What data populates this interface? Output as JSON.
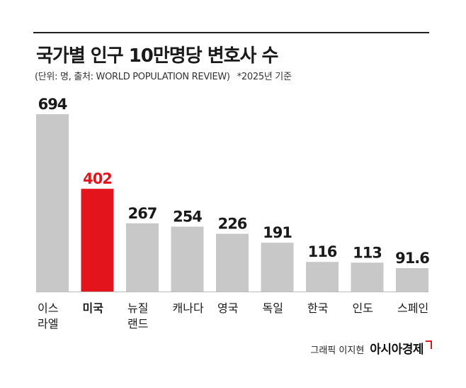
{
  "header": {
    "title": "국가별 인구 10만명당 변호사 수",
    "unit_source": "(단위: 명, 출처: WORLD POPULATION REVIEW)",
    "note": "*2025년 기준"
  },
  "credit": {
    "byline": "그래픽 이지현",
    "brand": "아시아경제"
  },
  "colors": {
    "bar_default": "#c8c8c8",
    "bar_highlight": "#e4141d",
    "value_default": "#1a1a1a",
    "value_highlight": "#e4141d"
  },
  "chart_data": {
    "type": "bar",
    "title": "국가별 인구 10만명당 변호사 수",
    "categories": [
      [
        "이스",
        "라엘"
      ],
      [
        "미국"
      ],
      [
        "뉴질",
        "랜드"
      ],
      [
        "캐나다"
      ],
      [
        "영국"
      ],
      [
        "독일"
      ],
      [
        "한국"
      ],
      [
        "인도"
      ],
      [
        "스페인"
      ]
    ],
    "values": [
      694,
      402,
      267,
      254,
      226,
      191,
      116,
      113,
      91.6
    ],
    "value_labels": [
      "694",
      "402",
      "267",
      "254",
      "226",
      "191",
      "116",
      "113",
      "91.6"
    ],
    "highlight_index": 1,
    "ylim": [
      0,
      694
    ],
    "grid": false,
    "xlabel": "",
    "ylabel": ""
  }
}
